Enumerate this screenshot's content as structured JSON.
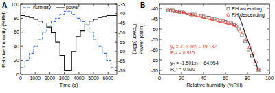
{
  "chart_data": [
    {
      "type": "line",
      "title": "A",
      "xlabel": "Time (s)",
      "ylabel": "Relative humidity (%RH)",
      "y2label": "Power (dBm)",
      "x": [
        0,
        300,
        300,
        600,
        600,
        900,
        900,
        1200,
        1200,
        1500,
        1500,
        1800,
        1800,
        2100,
        2100,
        2400,
        2400,
        2700,
        2700,
        3000,
        3000,
        3500,
        3500,
        3800,
        3800,
        4100,
        4100,
        4400,
        4400,
        4700,
        4700,
        5000,
        5000,
        5300,
        5300,
        5600,
        5600,
        5900,
        5900,
        6200,
        6200,
        6600
      ],
      "xlim": [
        0,
        6600
      ],
      "xticks": [
        0,
        1000,
        2000,
        3000,
        4000,
        5000,
        6000
      ],
      "ylim": [
        0,
        100
      ],
      "yticks": [
        0,
        20,
        40,
        60,
        80,
        100
      ],
      "y2lim": [
        -72,
        -35
      ],
      "y2ticks": [
        -70,
        -65,
        -60,
        -55,
        -50,
        -45,
        -40,
        -35
      ],
      "legend": "upper left",
      "grid": false,
      "series": [
        {
          "name": "humidity",
          "color": "#3b6fd6",
          "line_style": "dashed",
          "values": [
            10,
            10,
            20,
            20,
            30,
            30,
            40,
            40,
            50,
            50,
            60,
            60,
            70,
            70,
            75,
            75,
            80,
            80,
            85,
            85,
            90,
            90,
            85,
            85,
            80,
            80,
            75,
            75,
            70,
            70,
            60,
            60,
            50,
            50,
            40,
            40,
            30,
            30,
            20,
            20,
            10,
            10
          ]
        },
        {
          "name": "power",
          "color": "#111111",
          "line_style": "solid",
          "axis": "y2",
          "values": [
            -41,
            -41,
            -41.5,
            -41.5,
            -42,
            -42,
            -43,
            -43,
            -44,
            -44,
            -45,
            -45,
            -47,
            -47,
            -50,
            -50,
            -55,
            -55,
            -62,
            -62,
            -70,
            -70,
            -60,
            -60,
            -52,
            -52,
            -49,
            -49,
            -46,
            -46,
            -44,
            -44,
            -43,
            -43,
            -42,
            -42,
            -41.5,
            -41.5,
            -41,
            -41,
            -41,
            -41
          ]
        }
      ]
    },
    {
      "type": "scatter",
      "title": "B",
      "xlabel": "Relative humidity (%RH)",
      "ylabel": "Power (dBm)",
      "xlim": [
        0,
        100
      ],
      "xticks": [
        0,
        20,
        40,
        60,
        80,
        100
      ],
      "ylim": [
        -72,
        -38
      ],
      "yticks": [
        -70,
        -65,
        -60,
        -55,
        -50,
        -45,
        -40
      ],
      "legend": "upper right",
      "grid": false,
      "annotations": [
        {
          "text": "y₁ = -0.139x₁ - 39.132",
          "color": "#e8392d"
        },
        {
          "text": "R₁² = 0.915",
          "color": "#e8392d"
        },
        {
          "text": "y₂ = -1.501x₂ + 64.954",
          "color": "#111111"
        },
        {
          "text": "R₂² = 0.920",
          "color": "#111111"
        }
      ],
      "series": [
        {
          "name": "RH ascending",
          "color": "#555555",
          "marker": "square",
          "x": [
            8,
            12,
            16,
            20,
            25,
            30,
            35,
            40,
            45,
            50,
            55,
            60,
            65,
            68,
            72,
            75,
            78,
            81,
            84,
            87,
            90
          ],
          "values": [
            -41,
            -41,
            -41.5,
            -42,
            -42.5,
            -43,
            -43.5,
            -44,
            -44.5,
            -45,
            -46,
            -46.5,
            -47,
            -48,
            -50,
            -53,
            -56,
            -60,
            -63,
            -67,
            -70
          ]
        },
        {
          "name": "RH descending",
          "color": "#e8392d",
          "marker": "circle",
          "x": [
            9,
            13,
            18,
            22,
            28,
            33,
            38,
            43,
            48,
            53,
            58,
            62,
            66,
            70,
            73,
            76,
            79,
            82,
            85,
            88,
            90
          ],
          "values": [
            -40.5,
            -41.5,
            -42,
            -42,
            -43,
            -43,
            -43.5,
            -44.5,
            -45,
            -45.5,
            -46,
            -47,
            -47.5,
            -48.5,
            -51,
            -52,
            -55,
            -59,
            -62,
            -66,
            -69.5
          ]
        },
        {
          "type": "line",
          "color": "#e8392d",
          "line_style": "solid",
          "x": [
            10,
            70
          ],
          "values": [
            -40.52,
            -48.862
          ]
        },
        {
          "type": "line",
          "color": "#111111",
          "line_style": "solid",
          "x": [
            72,
            90
          ],
          "values": [
            -43.118,
            -70.136
          ]
        }
      ]
    }
  ]
}
